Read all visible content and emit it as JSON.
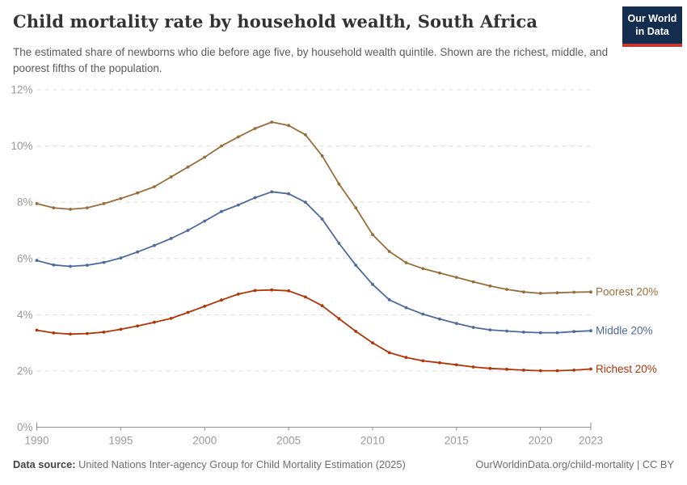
{
  "header": {
    "title": "Child mortality rate by household wealth, South Africa",
    "subtitle": "The estimated share of newborns who die before age five, by household wealth quintile. Shown are the richest, middle, and poorest fifths of the population.",
    "logo": {
      "line1": "Our World",
      "line2": "in Data",
      "bg_color": "#122D4E",
      "bar_color": "#C43932"
    }
  },
  "chart_data": {
    "type": "line",
    "x_start": 1990,
    "x_end": 2023,
    "x": [
      1990,
      1991,
      1992,
      1993,
      1994,
      1995,
      1996,
      1997,
      1998,
      1999,
      2000,
      2001,
      2002,
      2003,
      2004,
      2005,
      2006,
      2007,
      2008,
      2009,
      2010,
      2011,
      2012,
      2013,
      2014,
      2015,
      2016,
      2017,
      2018,
      2019,
      2020,
      2021,
      2022,
      2023
    ],
    "series": [
      {
        "name": "Poorest 20%",
        "color": "#996D39",
        "values": [
          7.95,
          7.8,
          7.75,
          7.8,
          7.95,
          8.13,
          8.33,
          8.55,
          8.9,
          9.25,
          9.6,
          10.0,
          10.32,
          10.62,
          10.85,
          10.73,
          10.4,
          9.65,
          8.65,
          7.8,
          6.85,
          6.25,
          5.85,
          5.64,
          5.48,
          5.33,
          5.17,
          5.02,
          4.9,
          4.81,
          4.76,
          4.78,
          4.8,
          4.81
        ]
      },
      {
        "name": "Middle 20%",
        "color": "#4C6A9C",
        "values": [
          5.93,
          5.77,
          5.72,
          5.76,
          5.86,
          6.02,
          6.23,
          6.46,
          6.71,
          7.0,
          7.33,
          7.67,
          7.9,
          8.16,
          8.37,
          8.3,
          8.0,
          7.4,
          6.54,
          5.76,
          5.08,
          4.53,
          4.25,
          4.02,
          3.85,
          3.69,
          3.55,
          3.46,
          3.42,
          3.38,
          3.36,
          3.36,
          3.4,
          3.43
        ]
      },
      {
        "name": "Richest 20%",
        "color": "#B13507",
        "values": [
          3.45,
          3.35,
          3.31,
          3.33,
          3.38,
          3.48,
          3.6,
          3.73,
          3.87,
          4.08,
          4.3,
          4.52,
          4.73,
          4.86,
          4.88,
          4.85,
          4.63,
          4.32,
          3.86,
          3.41,
          3.0,
          2.65,
          2.48,
          2.36,
          2.29,
          2.22,
          2.14,
          2.09,
          2.06,
          2.03,
          2.01,
          2.01,
          2.03,
          2.07
        ]
      }
    ],
    "title": "Child mortality rate by household wealth, South Africa",
    "xlabel": "",
    "ylabel": "",
    "ylim": [
      0,
      12
    ],
    "yticks": [
      0,
      2,
      4,
      6,
      8,
      10,
      12
    ],
    "ytick_suffix": "%",
    "xticks": [
      1990,
      1995,
      2000,
      2005,
      2010,
      2015,
      2020,
      2023
    ],
    "grid": true,
    "grid_color": "#dedede",
    "axis_color": "#8f8f8f",
    "tick_label_color": "#9a9a9a",
    "legend_position": "right-end-labels"
  },
  "footer": {
    "datasource_label": "Data source:",
    "datasource_text": " United Nations Inter-agency Group for Child Mortality Estimation (2025)",
    "rights": "OurWorldinData.org/child-mortality | CC BY"
  }
}
